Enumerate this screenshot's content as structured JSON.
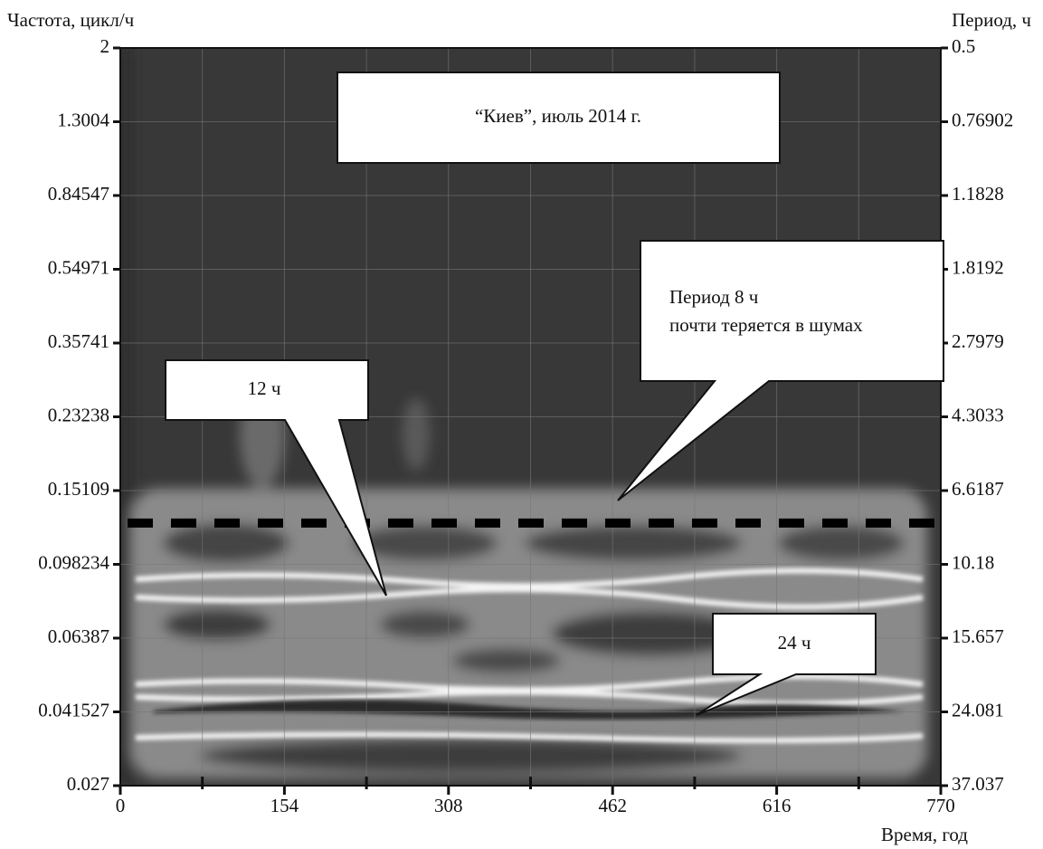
{
  "chart_data": {
    "type": "spectrogram",
    "ylabel": "Частота, цикл/ч",
    "y2label": "Период, ч",
    "xlabel": "Время, год",
    "yscale": "log",
    "y2scale": "log",
    "ylim": [
      0.027,
      2
    ],
    "yticks": [
      0.027,
      0.041527,
      0.06387,
      0.098234,
      0.15109,
      0.23238,
      0.35741,
      0.54971,
      0.84547,
      1.3004,
      2
    ],
    "y2lim": [
      37.037,
      0.5
    ],
    "y2ticks": [
      37.037,
      24.081,
      15.657,
      10.18,
      6.6187,
      4.3033,
      2.7979,
      1.8192,
      1.1828,
      0.76902,
      0.5
    ],
    "xlim": [
      0,
      770
    ],
    "xticks": [
      0,
      154,
      308,
      462,
      616,
      770
    ],
    "xminorticks": [
      77,
      231,
      385,
      539,
      693
    ],
    "grid": true,
    "hline": 0.125,
    "annotations": {
      "title": "“Киев”, июль 2014 г.",
      "p12": "12 ч",
      "p24": "24 ч",
      "p8": [
        "Период 8 ч",
        "почти теряется в шумах"
      ]
    }
  }
}
